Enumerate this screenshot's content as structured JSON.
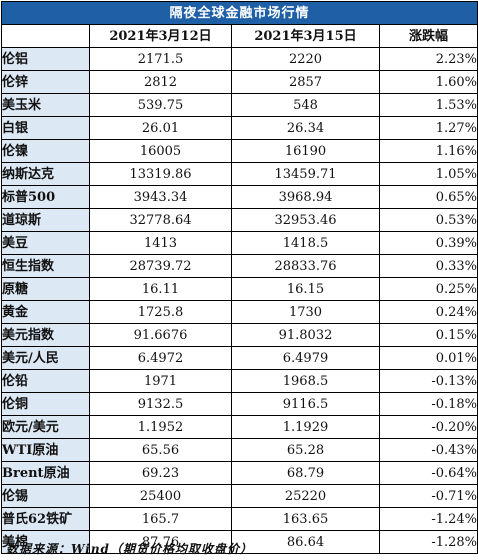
{
  "title": "隔夜全球金融市场行情",
  "headers": {
    "name": "",
    "date1": "2021年3月12日",
    "date2": "2021年3月15日",
    "change": "涨跌幅"
  },
  "rows": [
    {
      "name": "伦铝",
      "d1": "2171.5",
      "d2": "2220",
      "chg": "2.23%"
    },
    {
      "name": "伦锌",
      "d1": "2812",
      "d2": "2857",
      "chg": "1.60%"
    },
    {
      "name": "美玉米",
      "d1": "539.75",
      "d2": "548",
      "chg": "1.53%"
    },
    {
      "name": "白银",
      "d1": "26.01",
      "d2": "26.34",
      "chg": "1.27%"
    },
    {
      "name": "伦镍",
      "d1": "16005",
      "d2": "16190",
      "chg": "1.16%"
    },
    {
      "name": "纳斯达克",
      "d1": "13319.86",
      "d2": "13459.71",
      "chg": "1.05%"
    },
    {
      "name": "标普500",
      "d1": "3943.34",
      "d2": "3968.94",
      "chg": "0.65%"
    },
    {
      "name": "道琼斯",
      "d1": "32778.64",
      "d2": "32953.46",
      "chg": "0.53%"
    },
    {
      "name": "美豆",
      "d1": "1413",
      "d2": "1418.5",
      "chg": "0.39%"
    },
    {
      "name": "恒生指数",
      "d1": "28739.72",
      "d2": "28833.76",
      "chg": "0.33%"
    },
    {
      "name": "原糖",
      "d1": "16.11",
      "d2": "16.15",
      "chg": "0.25%"
    },
    {
      "name": "黄金",
      "d1": "1725.8",
      "d2": "1730",
      "chg": "0.24%"
    },
    {
      "name": "美元指数",
      "d1": "91.6676",
      "d2": "91.8032",
      "chg": "0.15%"
    },
    {
      "name": "美元/人民",
      "d1": "6.4972",
      "d2": "6.4979",
      "chg": "0.01%"
    },
    {
      "name": "伦铅",
      "d1": "1971",
      "d2": "1968.5",
      "chg": "-0.13%"
    },
    {
      "name": "伦铜",
      "d1": "9132.5",
      "d2": "9116.5",
      "chg": "-0.18%"
    },
    {
      "name": "欧元/美元",
      "d1": "1.1952",
      "d2": "1.1929",
      "chg": "-0.20%"
    },
    {
      "name": "WTI原油",
      "d1": "65.56",
      "d2": "65.28",
      "chg": "-0.43%"
    },
    {
      "name": "Brent原油",
      "d1": "69.23",
      "d2": "68.79",
      "chg": "-0.64%"
    },
    {
      "name": "伦锡",
      "d1": "25400",
      "d2": "25220",
      "chg": "-0.71%"
    },
    {
      "name": "普氏62铁矿",
      "d1": "165.7",
      "d2": "163.65",
      "chg": "-1.24%"
    },
    {
      "name": "美棉",
      "d1": "87.76",
      "d2": "86.64",
      "chg": "-1.28%"
    }
  ],
  "footnote": "数据来源：Wind（期货价格均取收盘价）",
  "colors": {
    "title_bg": "#1f5fa6",
    "title_text": "#ffffff",
    "name_bg": "#dde8f5",
    "border": "#000000"
  }
}
